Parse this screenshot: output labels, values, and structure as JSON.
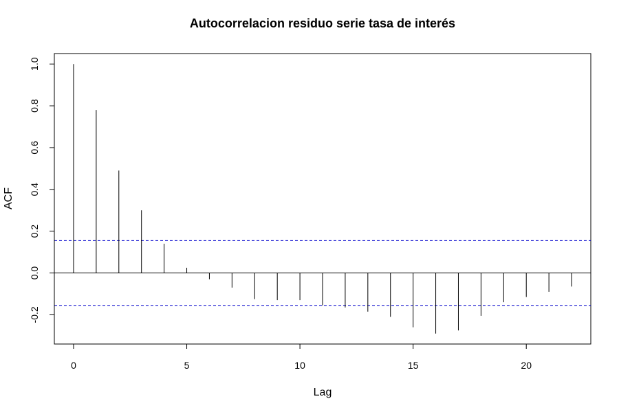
{
  "chart_data": {
    "type": "bar",
    "title": "Autocorrelacion residuo serie tasa de interés",
    "xlabel": "Lag",
    "ylabel": "ACF",
    "x": [
      0,
      1,
      2,
      3,
      4,
      5,
      6,
      7,
      8,
      9,
      10,
      11,
      12,
      13,
      14,
      15,
      16,
      17,
      18,
      19,
      20,
      21,
      22
    ],
    "values": [
      1.0,
      0.78,
      0.49,
      0.3,
      0.14,
      0.025,
      -0.03,
      -0.07,
      -0.125,
      -0.13,
      -0.13,
      -0.155,
      -0.165,
      -0.185,
      -0.21,
      -0.26,
      -0.29,
      -0.275,
      -0.205,
      -0.14,
      -0.115,
      -0.09,
      -0.065
    ],
    "confidence_limit": 0.155,
    "xlim": [
      -0.85,
      22.85
    ],
    "ylim": [
      -0.34,
      1.05
    ],
    "x_ticks": [
      0,
      5,
      10,
      15,
      20
    ],
    "y_ticks": [
      -0.2,
      0.0,
      0.2,
      0.4,
      0.6,
      0.8,
      1.0
    ],
    "y_tick_labels": [
      "-0.2",
      "0.0",
      "0.2",
      "0.4",
      "0.6",
      "0.8",
      "1.0"
    ],
    "colors": {
      "bars": "#000000",
      "confidence": "#0000cc",
      "zero_line": "#000000"
    },
    "legend": "none",
    "grid": false
  }
}
